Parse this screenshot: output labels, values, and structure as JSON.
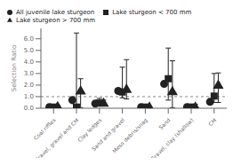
{
  "chart_data": {
    "type": "scatter",
    "categories": [
      "Coal riffles",
      "Gravel, gravel and CM",
      "Clay ledges",
      "Sand and gravel",
      "Meso debris/snag",
      "Sand",
      "Gravel, clay (shallow)",
      "CM"
    ],
    "series": [
      {
        "name": "All juvenile lake sturgeon",
        "color": "#222222",
        "marker": "circle",
        "values": [
          0.1,
          0.7,
          0.4,
          1.5,
          0.1,
          2.1,
          0.1,
          0.55
        ],
        "ci_low": [
          0.1,
          0.7,
          0.4,
          1.5,
          0.1,
          2.1,
          0.1,
          0.55
        ],
        "ci_high": [
          0.1,
          0.7,
          0.4,
          1.5,
          0.1,
          2.1,
          0.1,
          0.55
        ]
      },
      {
        "name": "Lake sturgeon < 700 mm",
        "color": "#222222",
        "marker": "square",
        "values": [
          0.1,
          0.1,
          0.45,
          1.4,
          0.1,
          2.55,
          0.1,
          1.05
        ],
        "ci_low": [
          0.05,
          0.05,
          0.35,
          0.9,
          0.05,
          0.7,
          0.05,
          0.5
        ],
        "ci_high": [
          0.2,
          6.5,
          0.85,
          3.55,
          0.2,
          5.2,
          0.35,
          3.0
        ]
      },
      {
        "name": "Lake sturgeon > 700 mm",
        "color": "#222222",
        "marker": "triangle",
        "values": [
          0.1,
          1.45,
          0.4,
          1.6,
          0.05,
          1.4,
          0.05,
          1.95
        ],
        "ci_low": [
          0.05,
          0.05,
          0.3,
          0.8,
          0.02,
          0.05,
          0.02,
          0.5
        ],
        "ci_high": [
          0.25,
          2.55,
          0.7,
          4.2,
          0.15,
          4.1,
          0.35,
          3.05
        ]
      }
    ],
    "ylabel": "Selection Ratio",
    "ylim": [
      0,
      6.9
    ],
    "yticks": [
      {
        "value": 0.0,
        "label": "0.0"
      },
      {
        "value": 1.0,
        "label": "1.0"
      },
      {
        "value": 2.0,
        "label": "2.0"
      },
      {
        "value": 3.0,
        "label": "3.0"
      },
      {
        "value": 4.0,
        "label": "4.0"
      },
      {
        "value": 5.0,
        "label": "5.0"
      },
      {
        "value": 6.0,
        "label": "6.0"
      }
    ],
    "hline": 1.0,
    "legend": "upper left",
    "grid": false
  }
}
